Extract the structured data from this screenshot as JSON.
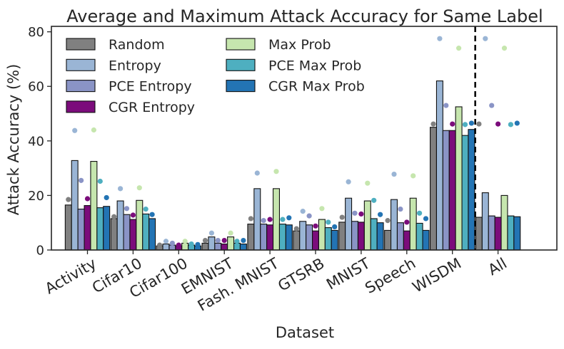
{
  "chart_data": {
    "type": "bar",
    "title": "Average and Maximum Attack Accuracy for Same Label",
    "xlabel": "Dataset",
    "ylabel": "Attack Accuracy (%)",
    "ylim": [
      0,
      82
    ],
    "yticks": [
      0,
      20,
      40,
      60,
      80
    ],
    "grid": false,
    "legend_position": "top-left",
    "categories": [
      "Activity",
      "Cifar10",
      "Cifar100",
      "EMNIST",
      "Fash. MNIST",
      "GTSRB",
      "MNIST",
      "Speech",
      "WISDM",
      "All"
    ],
    "separator_after_category": "WISDM",
    "series": [
      {
        "name": "Random",
        "color": "#808080",
        "values": [
          16.5,
          11.5,
          1.5,
          2.5,
          9.5,
          7.0,
          10.2,
          7.2,
          45.0,
          12.0
        ],
        "max_values": [
          18.5,
          12.2,
          1.8,
          3.5,
          11.5,
          7.8,
          12.0,
          10.8,
          46.2,
          46.2
        ]
      },
      {
        "name": "Entropy",
        "color": "#9ab5d5",
        "values": [
          32.8,
          18.0,
          2.2,
          4.8,
          22.5,
          10.5,
          19.0,
          18.5,
          62.0,
          21.0
        ],
        "max_values": [
          43.8,
          22.5,
          3.2,
          6.2,
          28.2,
          14.2,
          25.0,
          27.8,
          77.5,
          77.5
        ]
      },
      {
        "name": "PCE Entropy",
        "color": "#8a94c6",
        "values": [
          15.0,
          13.0,
          1.8,
          2.5,
          9.5,
          9.2,
          10.5,
          10.0,
          43.8,
          12.5
        ],
        "max_values": [
          25.5,
          15.2,
          2.5,
          3.5,
          10.8,
          12.5,
          13.5,
          15.0,
          53.0,
          53.0
        ]
      },
      {
        "name": "CGR Entropy",
        "color": "#7b0c7b",
        "values": [
          16.3,
          11.2,
          1.5,
          2.2,
          9.2,
          7.0,
          10.2,
          7.0,
          43.8,
          12.0
        ],
        "max_values": [
          18.8,
          12.8,
          1.8,
          3.5,
          11.2,
          8.8,
          13.2,
          10.2,
          46.2,
          46.2
        ]
      },
      {
        "name": "Max Prob",
        "color": "#c6e6ae",
        "values": [
          32.5,
          18.2,
          2.5,
          4.8,
          22.5,
          11.2,
          18.0,
          19.0,
          52.5,
          20.0
        ],
        "max_values": [
          44.0,
          22.8,
          3.2,
          6.2,
          28.8,
          15.2,
          24.5,
          27.2,
          74.0,
          74.0
        ]
      },
      {
        "name": "PCE Max Prob",
        "color": "#4eafc0",
        "values": [
          15.5,
          13.2,
          1.8,
          2.5,
          9.5,
          8.2,
          11.5,
          9.8,
          42.0,
          12.5
        ],
        "max_values": [
          25.2,
          15.0,
          2.2,
          3.2,
          11.2,
          10.2,
          18.2,
          13.5,
          46.0,
          46.0
        ]
      },
      {
        "name": "CGR Max Prob",
        "color": "#2374b4",
        "values": [
          16.0,
          11.5,
          1.5,
          2.2,
          9.2,
          7.2,
          10.0,
          7.2,
          44.2,
          12.2
        ],
        "max_values": [
          19.2,
          13.0,
          2.0,
          3.5,
          11.8,
          8.5,
          13.0,
          11.5,
          46.5,
          46.5
        ]
      }
    ]
  }
}
